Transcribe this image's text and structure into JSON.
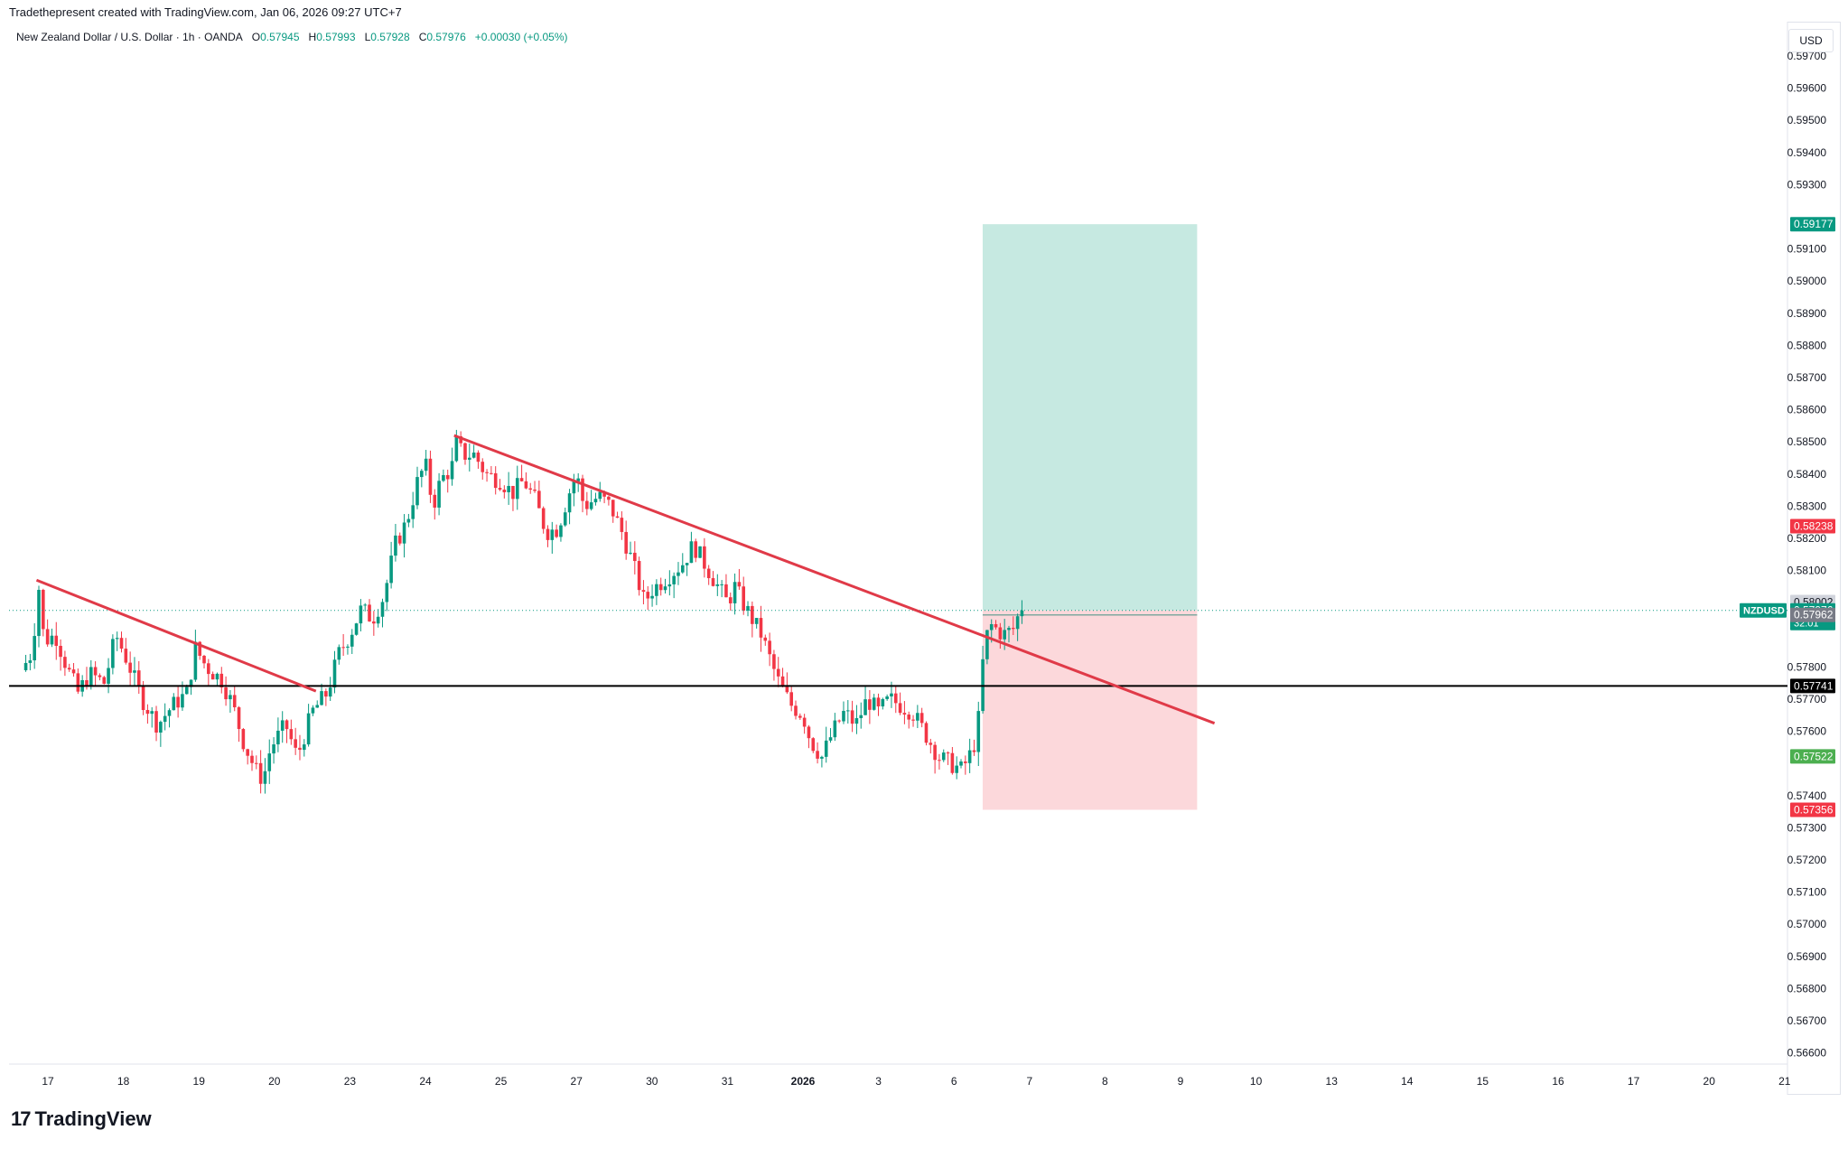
{
  "header": {
    "created_by": "Tradethepresent created with TradingView.com, Jan 06, 2026 09:27 UTC+7"
  },
  "symbol": {
    "name": "New Zealand Dollar / U.S. Dollar · 1h · OANDA",
    "o_label": "O",
    "o_value": "0.57945",
    "h_label": "H",
    "h_value": "0.57993",
    "l_label": "L",
    "l_value": "0.57928",
    "c_label": "C",
    "c_value": "0.57976",
    "change": "+0.00030 (+0.05%)"
  },
  "currency": "USD",
  "footer": {
    "logo_text": "TradingView",
    "logo_mark": "17"
  },
  "colors": {
    "up": "#089981",
    "down": "#f23645",
    "trendline": "#e03a48",
    "profit_zone": "#c6e9e1",
    "loss_zone": "#fcd8db"
  },
  "chart_data": {
    "type": "candlestick",
    "title": "New Zealand Dollar / U.S. Dollar · 1h · OANDA",
    "y_axis": {
      "range": [
        0.5655,
        0.5975
      ],
      "ticks": [
        "0.59700",
        "0.59600",
        "0.59500",
        "0.59400",
        "0.59300",
        "0.59100",
        "0.59000",
        "0.58900",
        "0.58800",
        "0.58700",
        "0.58600",
        "0.58500",
        "0.58400",
        "0.58300",
        "0.58200",
        "0.58100",
        "0.57800",
        "0.57700",
        "0.57600",
        "0.57400",
        "0.57300",
        "0.57200",
        "0.57100",
        "0.57000",
        "0.56900",
        "0.56800",
        "0.56700",
        "0.56600"
      ]
    },
    "x_axis": {
      "ticks": [
        {
          "label": "17",
          "pos": 0
        },
        {
          "label": "18",
          "pos": 1
        },
        {
          "label": "19",
          "pos": 2
        },
        {
          "label": "20",
          "pos": 3
        },
        {
          "label": "23",
          "pos": 4
        },
        {
          "label": "24",
          "pos": 5
        },
        {
          "label": "25",
          "pos": 6
        },
        {
          "label": "27",
          "pos": 7
        },
        {
          "label": "30",
          "pos": 8
        },
        {
          "label": "31",
          "pos": 9
        },
        {
          "label": "2026",
          "pos": 10,
          "bold": true
        },
        {
          "label": "3",
          "pos": 11
        },
        {
          "label": "6",
          "pos": 12
        },
        {
          "label": "7",
          "pos": 13
        },
        {
          "label": "8",
          "pos": 14
        },
        {
          "label": "9",
          "pos": 15
        },
        {
          "label": "10",
          "pos": 16
        },
        {
          "label": "13",
          "pos": 17
        },
        {
          "label": "14",
          "pos": 18
        },
        {
          "label": "15",
          "pos": 19
        },
        {
          "label": "16",
          "pos": 20
        },
        {
          "label": "17",
          "pos": 21
        },
        {
          "label": "20",
          "pos": 22
        },
        {
          "label": "21",
          "pos": 23
        }
      ]
    },
    "price_path": [
      [
        -0.35,
        0.5779
      ],
      [
        -0.2,
        0.5785
      ],
      [
        -0.13,
        0.5807
      ],
      [
        -0.05,
        0.5788
      ],
      [
        0.1,
        0.579
      ],
      [
        0.25,
        0.578
      ],
      [
        0.4,
        0.5772
      ],
      [
        0.55,
        0.5778
      ],
      [
        0.75,
        0.5775
      ],
      [
        0.9,
        0.579
      ],
      [
        1.05,
        0.5782
      ],
      [
        1.25,
        0.577
      ],
      [
        1.45,
        0.5762
      ],
      [
        1.65,
        0.5768
      ],
      [
        1.85,
        0.5772
      ],
      [
        1.95,
        0.5786
      ],
      [
        2.1,
        0.578
      ],
      [
        2.3,
        0.5776
      ],
      [
        2.45,
        0.5768
      ],
      [
        2.6,
        0.5756
      ],
      [
        2.75,
        0.5748
      ],
      [
        2.85,
        0.5745
      ],
      [
        2.95,
        0.5755
      ],
      [
        3.15,
        0.5762
      ],
      [
        3.3,
        0.5752
      ],
      [
        3.5,
        0.5766
      ],
      [
        3.7,
        0.5772
      ],
      [
        3.85,
        0.5784
      ],
      [
        4.0,
        0.579
      ],
      [
        4.15,
        0.5798
      ],
      [
        4.3,
        0.5795
      ],
      [
        4.45,
        0.5802
      ],
      [
        4.6,
        0.5818
      ],
      [
        4.75,
        0.5825
      ],
      [
        4.9,
        0.5838
      ],
      [
        5.0,
        0.5843
      ],
      [
        5.1,
        0.583
      ],
      [
        5.2,
        0.5838
      ],
      [
        5.35,
        0.5842
      ],
      [
        5.4,
        0.585
      ],
      [
        5.5,
        0.5846
      ],
      [
        5.65,
        0.5846
      ],
      [
        5.8,
        0.584
      ],
      [
        6.0,
        0.5838
      ],
      [
        6.15,
        0.5834
      ],
      [
        6.3,
        0.5838
      ],
      [
        6.45,
        0.5832
      ],
      [
        6.6,
        0.5822
      ],
      [
        6.75,
        0.5823
      ],
      [
        6.9,
        0.5834
      ],
      [
        7.0,
        0.584
      ],
      [
        7.1,
        0.583
      ],
      [
        7.3,
        0.5833
      ],
      [
        7.45,
        0.583
      ],
      [
        7.6,
        0.5822
      ],
      [
        7.75,
        0.5812
      ],
      [
        7.9,
        0.58
      ],
      [
        8.0,
        0.5804
      ],
      [
        8.2,
        0.5808
      ],
      [
        8.4,
        0.5812
      ],
      [
        8.55,
        0.5818
      ],
      [
        8.7,
        0.5812
      ],
      [
        8.85,
        0.5806
      ],
      [
        9.0,
        0.58
      ],
      [
        9.1,
        0.5805
      ],
      [
        9.2,
        0.58
      ],
      [
        9.3,
        0.5796
      ],
      [
        9.45,
        0.579
      ],
      [
        9.6,
        0.578
      ],
      [
        9.7,
        0.5774
      ],
      [
        9.85,
        0.5768
      ],
      [
        10.0,
        0.5765
      ],
      [
        10.1,
        0.5757
      ],
      [
        10.25,
        0.5752
      ],
      [
        10.4,
        0.576
      ],
      [
        10.55,
        0.5766
      ],
      [
        10.7,
        0.5762
      ],
      [
        10.85,
        0.577
      ],
      [
        11.0,
        0.5766
      ],
      [
        11.15,
        0.577
      ],
      [
        11.3,
        0.5768
      ],
      [
        11.45,
        0.5766
      ],
      [
        11.6,
        0.576
      ],
      [
        11.8,
        0.5752
      ],
      [
        11.95,
        0.575
      ],
      [
        12.1,
        0.5748
      ],
      [
        12.2,
        0.5752
      ],
      [
        12.3,
        0.5758
      ],
      [
        12.35,
        0.577
      ],
      [
        12.4,
        0.5788
      ],
      [
        12.5,
        0.5793
      ],
      [
        12.65,
        0.579
      ],
      [
        12.8,
        0.5792
      ],
      [
        12.85,
        0.5796
      ],
      [
        12.9,
        0.57976
      ]
    ],
    "trendlines": [
      {
        "name": "downtrend-1",
        "from": [
          -0.15,
          0.5807
        ],
        "to": [
          3.55,
          0.57725
        ]
      },
      {
        "name": "downtrend-2",
        "from": [
          5.38,
          0.5852
        ],
        "to": [
          15.45,
          0.57625
        ]
      }
    ],
    "horizontal_lines": [
      {
        "name": "support",
        "price": 0.57741,
        "color": "#000000"
      }
    ],
    "current_price_line": {
      "price": 0.57976,
      "color": "#089981"
    },
    "position": {
      "type": "long",
      "start_x": 12.38,
      "end_x": 15.22,
      "entry": 0.57962,
      "target": 0.59177,
      "stop": 0.57356,
      "entry_top": 0.57976
    },
    "price_labels": [
      {
        "value": "0.59177",
        "price": 0.59177,
        "bg": "#089981",
        "fg": "#ffffff"
      },
      {
        "value": "0.58238",
        "price": 0.58238,
        "bg": "#f23645",
        "fg": "#ffffff"
      },
      {
        "value": "0.58002",
        "price": 0.58002,
        "bg": "#d1d4dc",
        "fg": "#131722"
      },
      {
        "value": "0.57976",
        "price": 0.57976,
        "bg": "#089981",
        "fg": "#ffffff",
        "extra": "32:01",
        "tag": "NZDUSD"
      },
      {
        "value": "0.57962",
        "price": 0.57962,
        "bg": "#787b86",
        "fg": "#ffffff"
      },
      {
        "value": "0.57741",
        "price": 0.57741,
        "bg": "#000000",
        "fg": "#ffffff"
      },
      {
        "value": "0.57522",
        "price": 0.57522,
        "bg": "#4caf50",
        "fg": "#ffffff"
      },
      {
        "value": "0.57356",
        "price": 0.57356,
        "bg": "#f23645",
        "fg": "#ffffff"
      }
    ]
  }
}
